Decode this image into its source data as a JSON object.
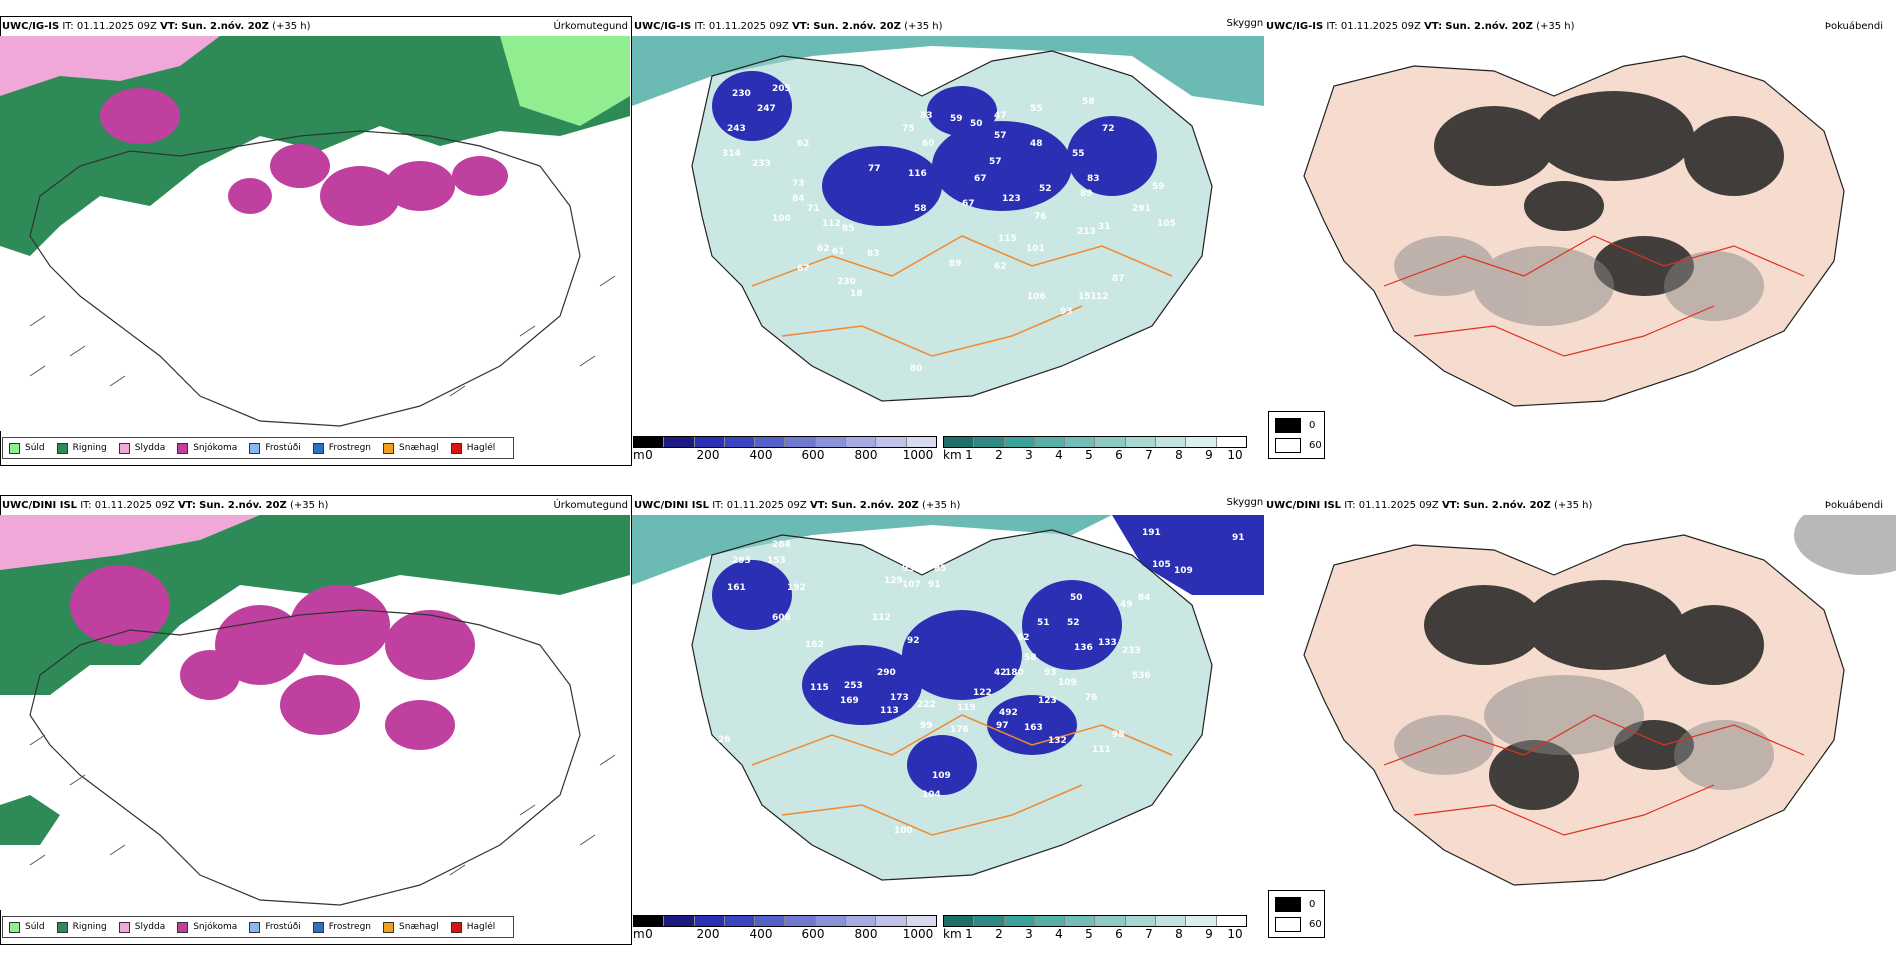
{
  "colors": {
    "rain": "#2e8b57",
    "drizzle": "#90ee90",
    "sleet": "#f0a8d8",
    "snow": "#c040a0",
    "teal": "#3aa39a",
    "tealLight": "#9fd4cc",
    "blue": "#2a2fb4",
    "orange": "#f08a30",
    "red": "#e03020",
    "land": "#f5dccf"
  },
  "rows": [
    {
      "model": "UWC/IG-IS",
      "it_label": "IT:",
      "it_value": "01.11.2025 09Z",
      "vt_label": "VT:",
      "vt_value": "Sun. 2.nóv. 20Z",
      "lead": "(+35 h)",
      "ceiling_numbers": [
        "230",
        "247",
        "205",
        "243",
        "62",
        "314",
        "233",
        "73",
        "84",
        "100",
        "71",
        "112",
        "85",
        "62",
        "61",
        "83",
        "67",
        "58",
        "77",
        "116",
        "75",
        "83",
        "60",
        "59",
        "50",
        "47",
        "55",
        "58",
        "57",
        "48",
        "55",
        "57",
        "67",
        "72",
        "67",
        "52",
        "123",
        "83",
        "89",
        "76",
        "213",
        "31",
        "291",
        "115",
        "101",
        "62",
        "89",
        "106",
        "93",
        "151",
        "12",
        "87",
        "59",
        "230",
        "18",
        "105",
        "80"
      ]
    },
    {
      "model": "UWC/DINI ISL",
      "it_label": "IT:",
      "it_value": "01.11.2025 09Z",
      "vt_label": "VT:",
      "vt_value": "Sun. 2.nóv. 20Z",
      "lead": "(+35 h)",
      "ceiling_numbers": [
        "191",
        "91",
        "105",
        "109",
        "284",
        "293",
        "153",
        "192",
        "161",
        "608",
        "162",
        "115",
        "169",
        "253",
        "290",
        "112",
        "92",
        "173",
        "222",
        "113",
        "99",
        "176",
        "492",
        "122",
        "119",
        "180",
        "42",
        "62",
        "58",
        "93",
        "51",
        "52",
        "50",
        "49",
        "84",
        "136",
        "133",
        "233",
        "536",
        "109",
        "76",
        "123",
        "163",
        "132",
        "97",
        "104",
        "109",
        "111",
        "98",
        "95",
        "85",
        "107",
        "91",
        "129",
        "56",
        "26",
        "100"
      ]
    }
  ],
  "panels": {
    "precip": {
      "field": "Úrkomutegund",
      "legend": [
        "Súld",
        "Rigning",
        "Slydda",
        "Snjókoma",
        "Frostúði",
        "Frostregn",
        "Snæhagl",
        "Haglél"
      ],
      "legend_colors": [
        "#90ee90",
        "#2e8b57",
        "#f0a8d8",
        "#c040a0",
        "#87b8f0",
        "#3070c0",
        "#f0a020",
        "#e01010"
      ]
    },
    "visibility": {
      "field": "Skyggni",
      "m_unit": "m",
      "m_ticks": [
        "0",
        "200",
        "400",
        "600",
        "800",
        "1000"
      ],
      "km_unit": "km",
      "km_ticks": [
        "1",
        "2",
        "3",
        "4",
        "5",
        "6",
        "7",
        "8",
        "9",
        "10"
      ]
    },
    "fog": {
      "field": "Þokuábendi",
      "legend_low": "0",
      "legend_high": "60"
    }
  }
}
